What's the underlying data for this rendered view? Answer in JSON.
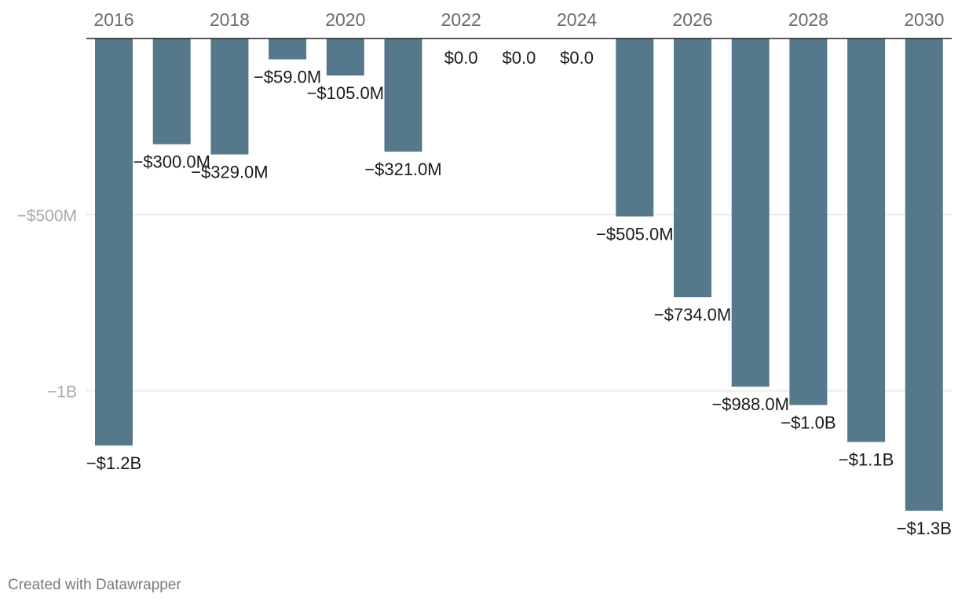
{
  "chart_data": {
    "type": "bar",
    "title": "",
    "xlabel": "",
    "ylabel": "",
    "categories": [
      "2016",
      "2017",
      "2018",
      "2019",
      "2020",
      "2021",
      "2022",
      "2023",
      "2024",
      "2025",
      "2026",
      "2027",
      "2028",
      "2029",
      "2030"
    ],
    "values": [
      -1155,
      -300,
      -329,
      -59,
      -105,
      -321,
      0,
      0,
      0,
      -505,
      -734,
      -988,
      -1040,
      -1145,
      -1340
    ],
    "data_labels": [
      "−$1.2B",
      "−$300.0M",
      "−$329.0M",
      "−$59.0M",
      "−$105.0M",
      "−$321.0M",
      "$0.0",
      "$0.0",
      "$0.0",
      "−$505.0M",
      "−$734.0M",
      "−$988.0M",
      "−$1.0B",
      "−$1.1B",
      "−$1.3B"
    ],
    "x_tick_labels": [
      "2016",
      "",
      "2018",
      "",
      "2020",
      "",
      "2022",
      "",
      "2024",
      "",
      "2026",
      "",
      "2028",
      "",
      "2030"
    ],
    "y_ticks": [
      {
        "value": -500,
        "label": "−$500M"
      },
      {
        "value": -1000,
        "label": "−1B"
      }
    ],
    "ylim": [
      -1340,
      0
    ],
    "bar_color": "#56788b",
    "grid": true,
    "x_axis_position": "top"
  },
  "footer": {
    "credit": "Created with Datawrapper"
  }
}
